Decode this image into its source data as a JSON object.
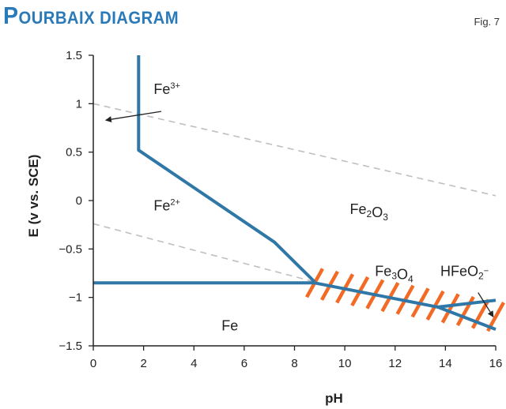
{
  "title": "Pourbaix diagram",
  "title_first": "P",
  "title_rest": "ourbaix diagram",
  "figure_number": "Fig. 7",
  "colors": {
    "title": "#2a79b8",
    "boundary": "#2f77a7",
    "water_line": "#bfbfbf",
    "hatch": "#f36a24",
    "axis": "#222222"
  },
  "chart_data": {
    "type": "line",
    "xlabel": "pH",
    "ylabel": "E (v vs. SCE)",
    "xlim": [
      0,
      16
    ],
    "ylim": [
      -1.5,
      1.5
    ],
    "xticks": [
      0,
      2,
      4,
      6,
      8,
      10,
      12,
      14,
      16
    ],
    "yticks": [
      -1.5,
      -1,
      -0.5,
      0,
      0.5,
      1,
      1.5
    ],
    "grid": false,
    "boundaries": [
      {
        "points": [
          [
            1.8,
            1.5
          ],
          [
            1.8,
            0.52
          ],
          [
            7.2,
            -0.43
          ],
          [
            8.8,
            -0.84
          ]
        ]
      },
      {
        "points": [
          [
            0,
            -0.85
          ],
          [
            8.8,
            -0.85
          ]
        ]
      },
      {
        "points": [
          [
            8.8,
            -0.85
          ],
          [
            13.7,
            -1.1
          ],
          [
            16,
            -1.03
          ]
        ]
      },
      {
        "points": [
          [
            13.7,
            -1.1
          ],
          [
            16,
            -1.33
          ]
        ]
      }
    ],
    "water_lines": [
      {
        "points": [
          [
            0,
            1.0
          ],
          [
            16,
            0.05
          ]
        ]
      },
      {
        "points": [
          [
            0,
            -0.24
          ],
          [
            8.8,
            -0.84
          ]
        ]
      }
    ],
    "hatched_band": {
      "from": [
        8.8,
        -0.85
      ],
      "to": [
        16,
        -1.2
      ],
      "count": 13
    },
    "regions": [
      {
        "base": "Fe",
        "sup": "3+",
        "x": 2.4,
        "y": 1.1
      },
      {
        "base": "Fe",
        "sup": "2+",
        "x": 2.4,
        "y": -0.1
      },
      {
        "base": "Fe2O3",
        "x": 10.2,
        "y": -0.14,
        "parts": [
          [
            "Fe",
            ""
          ],
          [
            "2",
            "sub"
          ],
          [
            "O",
            ""
          ],
          [
            "3",
            "sub"
          ]
        ]
      },
      {
        "base": "Fe3O4",
        "x": 11.2,
        "y": -0.78,
        "parts": [
          [
            "Fe",
            ""
          ],
          [
            "3",
            "sub"
          ],
          [
            "O",
            ""
          ],
          [
            "4",
            "sub"
          ]
        ]
      },
      {
        "base": "HFeO2-",
        "x": 13.8,
        "y": -0.78,
        "parts": [
          [
            "HFeO",
            ""
          ],
          [
            "2",
            "sub"
          ],
          [
            "−",
            "sup"
          ]
        ]
      },
      {
        "base": "Fe",
        "x": 5.1,
        "y": -1.34
      }
    ],
    "arrows": [
      {
        "from": [
          2.7,
          0.92
        ],
        "to": [
          0.5,
          0.83
        ]
      },
      {
        "from": [
          15.3,
          -0.95
        ],
        "to": [
          15.9,
          -1.2
        ]
      }
    ]
  }
}
